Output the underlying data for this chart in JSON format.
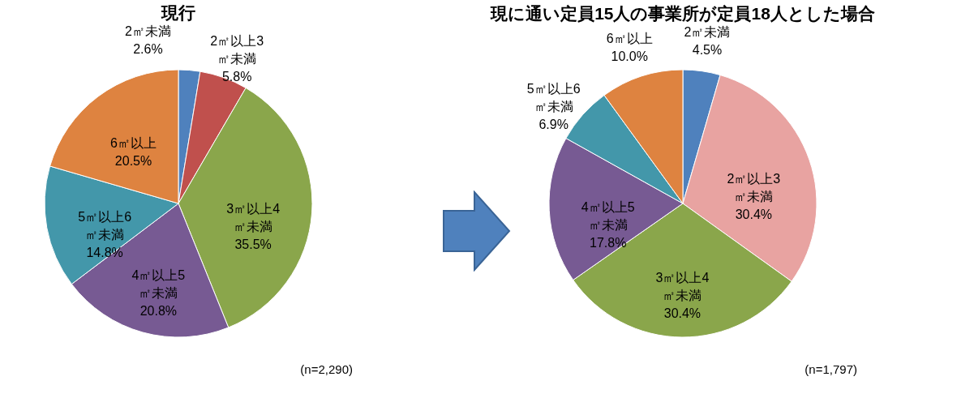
{
  "chart_data": [
    {
      "type": "pie",
      "title": "現行",
      "categories": [
        "2㎡未満",
        "2㎡以上3㎡未満",
        "3㎡以上4㎡未満",
        "4㎡以上5㎡未満",
        "5㎡以上6㎡未満",
        "6㎡以上"
      ],
      "values": [
        2.6,
        5.8,
        35.5,
        20.8,
        14.8,
        20.5
      ],
      "value_labels": [
        "2.6%",
        "5.8%",
        "35.5%",
        "20.8%",
        "14.8%",
        "20.5%"
      ],
      "colors": [
        "#4f81bd",
        "#c0504d",
        "#8aa64b",
        "#775a93",
        "#4397aa",
        "#de8340"
      ],
      "annotations": [
        "(n=2,290)"
      ]
    },
    {
      "type": "pie",
      "title": "現に通い定員15人の事業所が定員18人とした場合",
      "categories": [
        "2㎡未満",
        "2㎡以上3㎡未満",
        "3㎡以上4㎡未満",
        "4㎡以上5㎡未満",
        "5㎡以上6㎡未満",
        "6㎡以上"
      ],
      "values": [
        4.5,
        30.4,
        30.4,
        17.8,
        6.9,
        10.0
      ],
      "value_labels": [
        "4.5%",
        "30.4%",
        "30.4%",
        "17.8%",
        "6.9%",
        "10.0%"
      ],
      "colors": [
        "#4f81bd",
        "#e8a3a1",
        "#8aa64b",
        "#775a93",
        "#4397aa",
        "#de8340"
      ],
      "annotations": [
        "(n=1,797)"
      ]
    }
  ]
}
